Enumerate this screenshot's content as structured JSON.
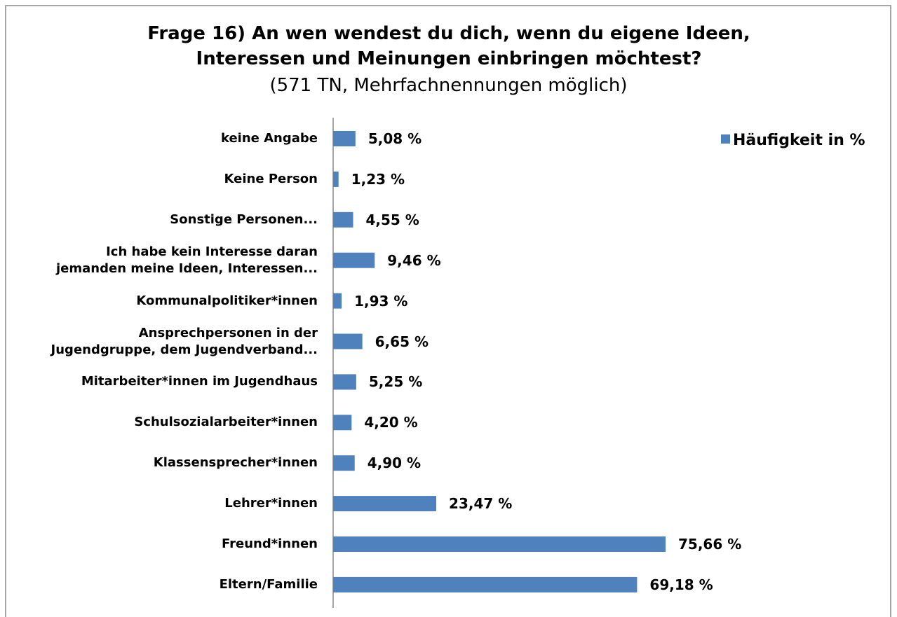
{
  "chart_data": {
    "type": "bar",
    "orientation": "horizontal",
    "title": "Frage 16) An wen wendest du dich, wenn du eigene Ideen, Interessen und Meinungen einbringen möchtest?",
    "subtitle": "(571 TN, Mehrfachnennungen möglich)",
    "categories": [
      "keine Angabe",
      "Keine Person",
      "Sonstige Personen...",
      "Ich habe kein Interesse daran\njemanden meine Ideen, Interessen...",
      "Kommunalpolitiker*innen",
      "Ansprechpersonen in der\nJugendgruppe, dem Jugendverband...",
      "Mitarbeiter*innen im Jugendhaus",
      "Schulsozialarbeiter*innen",
      "Klassensprecher*innen",
      "Lehrer*innen",
      "Freund*innen",
      "Eltern/Familie"
    ],
    "series": [
      {
        "name": "Häufigkeit in %",
        "color": "#4f81bd",
        "values": [
          5.08,
          1.23,
          4.55,
          9.46,
          1.93,
          6.65,
          5.25,
          4.2,
          4.9,
          23.47,
          75.66,
          69.18
        ],
        "value_labels": [
          "5,08 %",
          "1,23 %",
          "4,55 %",
          "9,46 %",
          "1,93 %",
          "6,65 %",
          "5,25 %",
          "4,20 %",
          "4,90 %",
          "23,47 %",
          "75,66 %",
          "69,18 %"
        ]
      }
    ],
    "legend": "top-right"
  }
}
